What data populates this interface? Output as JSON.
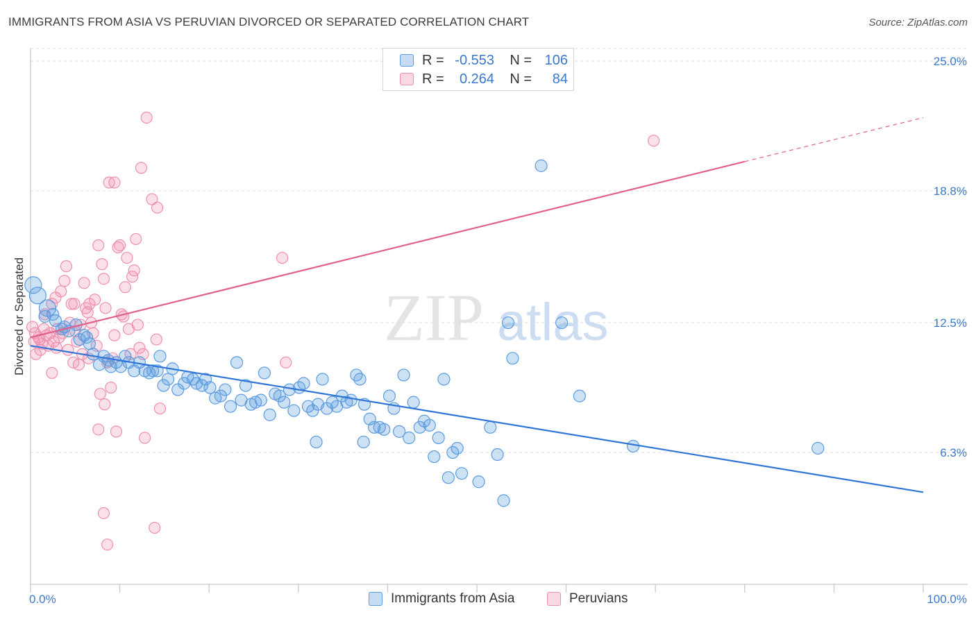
{
  "title": "IMMIGRANTS FROM ASIA VS PERUVIAN DIVORCED OR SEPARATED CORRELATION CHART",
  "source": "Source: ZipAtlas.com",
  "watermark": {
    "zip": "ZIP",
    "atlas": "atlas"
  },
  "legend": {
    "rows": [
      {
        "r_label": "R =",
        "r_value": "-0.553",
        "n_label": "N =",
        "n_value": "106",
        "color": "#5b9bdf"
      },
      {
        "r_label": "R =",
        "r_value": "0.264",
        "n_label": "N =",
        "n_value": "84",
        "color": "#ef8fae"
      }
    ]
  },
  "bottom_legend": [
    "Immigrants from Asia",
    "Peruvians"
  ],
  "colors": {
    "blue": "#5b9bdf",
    "blue_line": "#2f75d6",
    "pink": "#ef8fae",
    "pink_line": "#e0608c",
    "tick": "#3a78c9"
  },
  "chart_data": {
    "type": "scatter",
    "title": "IMMIGRANTS FROM ASIA VS PERUVIAN DIVORCED OR SEPARATED CORRELATION CHART",
    "xlabel": "",
    "ylabel": "Divorced or Separated",
    "xlim": [
      0,
      100
    ],
    "ylim": [
      0,
      25.6
    ],
    "x_tick_labels": [
      "0.0%",
      "100.0%"
    ],
    "y_ticks": [
      6.3,
      12.5,
      18.8,
      25.0
    ],
    "y_tick_labels": [
      "6.3%",
      "12.5%",
      "18.8%",
      "25.0%"
    ],
    "grid": "horizontal dashed",
    "legend_position": "top-center",
    "series": [
      {
        "name": "Immigrants from Asia",
        "color": "#5b9bdf",
        "trend": {
          "x": [
            0,
            100
          ],
          "y": [
            11.4,
            4.4
          ]
        },
        "points": [
          [
            0.3,
            14.3
          ],
          [
            0.8,
            13.8
          ],
          [
            1.9,
            13.2
          ],
          [
            2.5,
            12.9
          ],
          [
            3.8,
            12.3
          ],
          [
            3.5,
            12.2
          ],
          [
            4.3,
            12.1
          ],
          [
            5.5,
            11.7
          ],
          [
            6.3,
            11.8
          ],
          [
            6.6,
            11.5
          ],
          [
            7.0,
            11.0
          ],
          [
            7.7,
            10.5
          ],
          [
            8.2,
            10.9
          ],
          [
            8.7,
            10.7
          ],
          [
            9.0,
            10.4
          ],
          [
            9.6,
            10.6
          ],
          [
            10.1,
            10.4
          ],
          [
            10.6,
            10.9
          ],
          [
            11.0,
            10.6
          ],
          [
            11.6,
            10.2
          ],
          [
            12.2,
            10.6
          ],
          [
            12.8,
            10.2
          ],
          [
            13.3,
            10.1
          ],
          [
            13.7,
            10.2
          ],
          [
            14.2,
            10.2
          ],
          [
            14.5,
            10.9
          ],
          [
            14.9,
            9.5
          ],
          [
            15.4,
            9.8
          ],
          [
            15.9,
            10.3
          ],
          [
            16.5,
            9.3
          ],
          [
            17.2,
            9.6
          ],
          [
            17.6,
            9.9
          ],
          [
            18.2,
            9.8
          ],
          [
            18.6,
            9.6
          ],
          [
            19.2,
            9.5
          ],
          [
            19.6,
            9.8
          ],
          [
            20.1,
            9.4
          ],
          [
            20.7,
            8.9
          ],
          [
            21.3,
            9.0
          ],
          [
            21.8,
            9.3
          ],
          [
            22.4,
            8.5
          ],
          [
            23.1,
            10.6
          ],
          [
            23.6,
            8.8
          ],
          [
            24.1,
            9.5
          ],
          [
            24.7,
            8.6
          ],
          [
            25.2,
            8.7
          ],
          [
            25.8,
            8.8
          ],
          [
            26.2,
            10.1
          ],
          [
            26.8,
            8.1
          ],
          [
            27.4,
            9.1
          ],
          [
            27.9,
            9.0
          ],
          [
            28.4,
            8.7
          ],
          [
            29.0,
            9.3
          ],
          [
            29.5,
            8.3
          ],
          [
            30.1,
            9.4
          ],
          [
            30.6,
            9.6
          ],
          [
            31.1,
            8.5
          ],
          [
            31.6,
            8.3
          ],
          [
            32.2,
            8.6
          ],
          [
            32.7,
            9.8
          ],
          [
            33.2,
            8.4
          ],
          [
            33.8,
            8.7
          ],
          [
            34.3,
            8.5
          ],
          [
            34.9,
            9.0
          ],
          [
            35.4,
            8.7
          ],
          [
            35.9,
            8.8
          ],
          [
            36.5,
            10.0
          ],
          [
            36.9,
            9.8
          ],
          [
            37.4,
            8.6
          ],
          [
            38.0,
            7.9
          ],
          [
            38.5,
            7.5
          ],
          [
            39.1,
            7.5
          ],
          [
            39.6,
            7.4
          ],
          [
            40.2,
            9.0
          ],
          [
            40.7,
            8.4
          ],
          [
            41.3,
            7.3
          ],
          [
            41.8,
            10.0
          ],
          [
            42.4,
            7.0
          ],
          [
            42.9,
            8.7
          ],
          [
            43.6,
            7.5
          ],
          [
            44.1,
            7.8
          ],
          [
            44.7,
            7.6
          ],
          [
            45.2,
            6.1
          ],
          [
            45.7,
            7.0
          ],
          [
            46.3,
            9.8
          ],
          [
            46.8,
            5.1
          ],
          [
            47.3,
            6.3
          ],
          [
            47.8,
            6.5
          ],
          [
            48.3,
            5.3
          ],
          [
            32.0,
            6.8
          ],
          [
            37.3,
            6.8
          ],
          [
            50.2,
            4.9
          ],
          [
            51.5,
            7.5
          ],
          [
            52.3,
            6.2
          ],
          [
            53.0,
            4.0
          ],
          [
            53.5,
            12.5
          ],
          [
            54.0,
            10.8
          ],
          [
            57.2,
            20.0
          ],
          [
            59.5,
            12.5
          ],
          [
            61.5,
            9.0
          ],
          [
            67.5,
            6.6
          ],
          [
            88.2,
            6.5
          ],
          [
            1.6,
            12.8
          ],
          [
            2.8,
            12.6
          ],
          [
            5.1,
            12.4
          ],
          [
            6.0,
            11.9
          ]
        ]
      },
      {
        "name": "Peruvians",
        "color": "#ef8fae",
        "trend": {
          "x": [
            0,
            100
          ],
          "y": [
            11.8,
            22.3
          ],
          "solid_to_x": 80
        },
        "points": [
          [
            0.2,
            12.3
          ],
          [
            0.4,
            11.6
          ],
          [
            0.6,
            11.0
          ],
          [
            0.9,
            11.8
          ],
          [
            1.1,
            11.2
          ],
          [
            1.3,
            11.5
          ],
          [
            1.5,
            12.2
          ],
          [
            1.8,
            11.9
          ],
          [
            2.0,
            11.4
          ],
          [
            2.2,
            12.0
          ],
          [
            2.4,
            13.4
          ],
          [
            2.6,
            11.6
          ],
          [
            2.8,
            13.7
          ],
          [
            3.0,
            12.2
          ],
          [
            3.2,
            11.8
          ],
          [
            3.4,
            14.0
          ],
          [
            3.6,
            12.0
          ],
          [
            3.8,
            14.5
          ],
          [
            4.0,
            15.2
          ],
          [
            4.2,
            11.2
          ],
          [
            4.4,
            12.5
          ],
          [
            4.6,
            13.4
          ],
          [
            4.8,
            10.6
          ],
          [
            5.0,
            12.1
          ],
          [
            5.2,
            11.6
          ],
          [
            5.4,
            10.5
          ],
          [
            5.6,
            12.4
          ],
          [
            5.8,
            11.0
          ],
          [
            6.0,
            14.4
          ],
          [
            6.2,
            13.2
          ],
          [
            6.4,
            13.0
          ],
          [
            6.6,
            13.4
          ],
          [
            6.8,
            12.5
          ],
          [
            7.0,
            12.0
          ],
          [
            7.2,
            13.6
          ],
          [
            7.4,
            11.4
          ],
          [
            7.6,
            16.2
          ],
          [
            7.8,
            9.1
          ],
          [
            8.0,
            15.3
          ],
          [
            8.2,
            14.6
          ],
          [
            8.4,
            13.2
          ],
          [
            8.6,
            10.6
          ],
          [
            8.8,
            19.2
          ],
          [
            9.0,
            9.4
          ],
          [
            9.2,
            10.8
          ],
          [
            9.4,
            19.2
          ],
          [
            9.6,
            7.3
          ],
          [
            9.8,
            16.1
          ],
          [
            10.0,
            16.2
          ],
          [
            10.2,
            12.9
          ],
          [
            10.4,
            12.8
          ],
          [
            10.6,
            14.2
          ],
          [
            10.8,
            15.6
          ],
          [
            11.0,
            12.2
          ],
          [
            11.2,
            11.0
          ],
          [
            11.4,
            14.7
          ],
          [
            11.6,
            15.0
          ],
          [
            11.8,
            16.5
          ],
          [
            12.0,
            12.4
          ],
          [
            12.2,
            11.3
          ],
          [
            12.4,
            19.9
          ],
          [
            12.6,
            11.0
          ],
          [
            12.8,
            7.0
          ],
          [
            13.0,
            22.3
          ],
          [
            13.6,
            18.4
          ],
          [
            14.2,
            18.0
          ],
          [
            14.5,
            8.4
          ],
          [
            2.4,
            10.1
          ],
          [
            7.6,
            7.4
          ],
          [
            8.2,
            3.4
          ],
          [
            8.6,
            1.9
          ],
          [
            13.9,
            2.7
          ],
          [
            8.3,
            8.6
          ],
          [
            28.2,
            15.6
          ],
          [
            28.6,
            10.6
          ],
          [
            69.8,
            21.2
          ],
          [
            0.5,
            12.0
          ],
          [
            1.0,
            11.7
          ],
          [
            1.6,
            12.9
          ],
          [
            2.9,
            11.3
          ],
          [
            4.9,
            13.4
          ],
          [
            6.5,
            10.8
          ],
          [
            9.4,
            11.9
          ],
          [
            14.1,
            11.7
          ]
        ]
      }
    ]
  }
}
